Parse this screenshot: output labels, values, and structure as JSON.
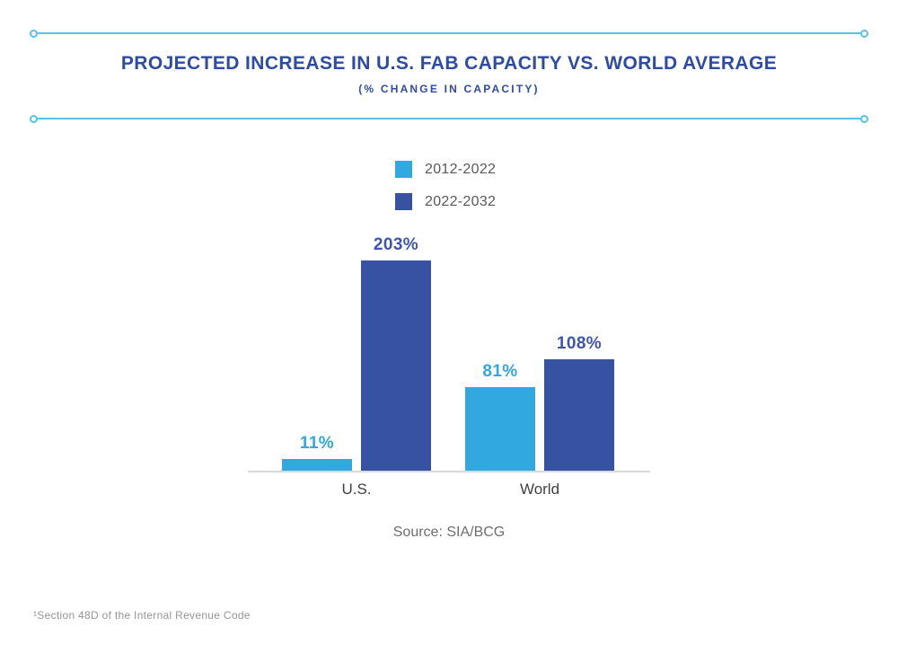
{
  "page": {
    "title": "PROJECTED INCREASE IN U.S. FAB CAPACITY VS. WORLD AVERAGE",
    "subtitle": "(% CHANGE IN CAPACITY)",
    "source": "Source: SIA/BCG",
    "footnote": "¹Section 48D of the Internal Revenue Code"
  },
  "colors": {
    "light_blue": "#31A8E0",
    "dark_blue": "#3751A3",
    "dark_blue_label": "#3E55AD",
    "title_blue": "#2E4BA5",
    "accent_line_blue": "#55C4EB",
    "axis_gray": "#D9DADB",
    "legend_text": "#58595B",
    "category_text": "#414042",
    "source_text": "#6D6E71",
    "footnote_text": "#939598"
  },
  "legend": [
    {
      "label": "2012-2022",
      "color": "#31A8E0"
    },
    {
      "label": "2022-2032",
      "color": "#3751A3"
    }
  ],
  "chart_data": {
    "type": "bar",
    "title": "PROJECTED INCREASE IN U.S. FAB CAPACITY VS. WORLD AVERAGE",
    "subtitle": "(% CHANGE IN CAPACITY)",
    "categories": [
      "U.S.",
      "World"
    ],
    "series": [
      {
        "name": "2012-2022",
        "values": [
          11,
          81
        ],
        "color": "#31A8E0",
        "label_color": "#31A8E0"
      },
      {
        "name": "2022-2032",
        "values": [
          203,
          108
        ],
        "color": "#3751A3",
        "label_color": "#3E55AD"
      }
    ],
    "value_suffix": "%",
    "ylim": [
      0,
      203
    ],
    "grid": false,
    "legend_position": "top-center",
    "source": "Source: SIA/BCG"
  }
}
